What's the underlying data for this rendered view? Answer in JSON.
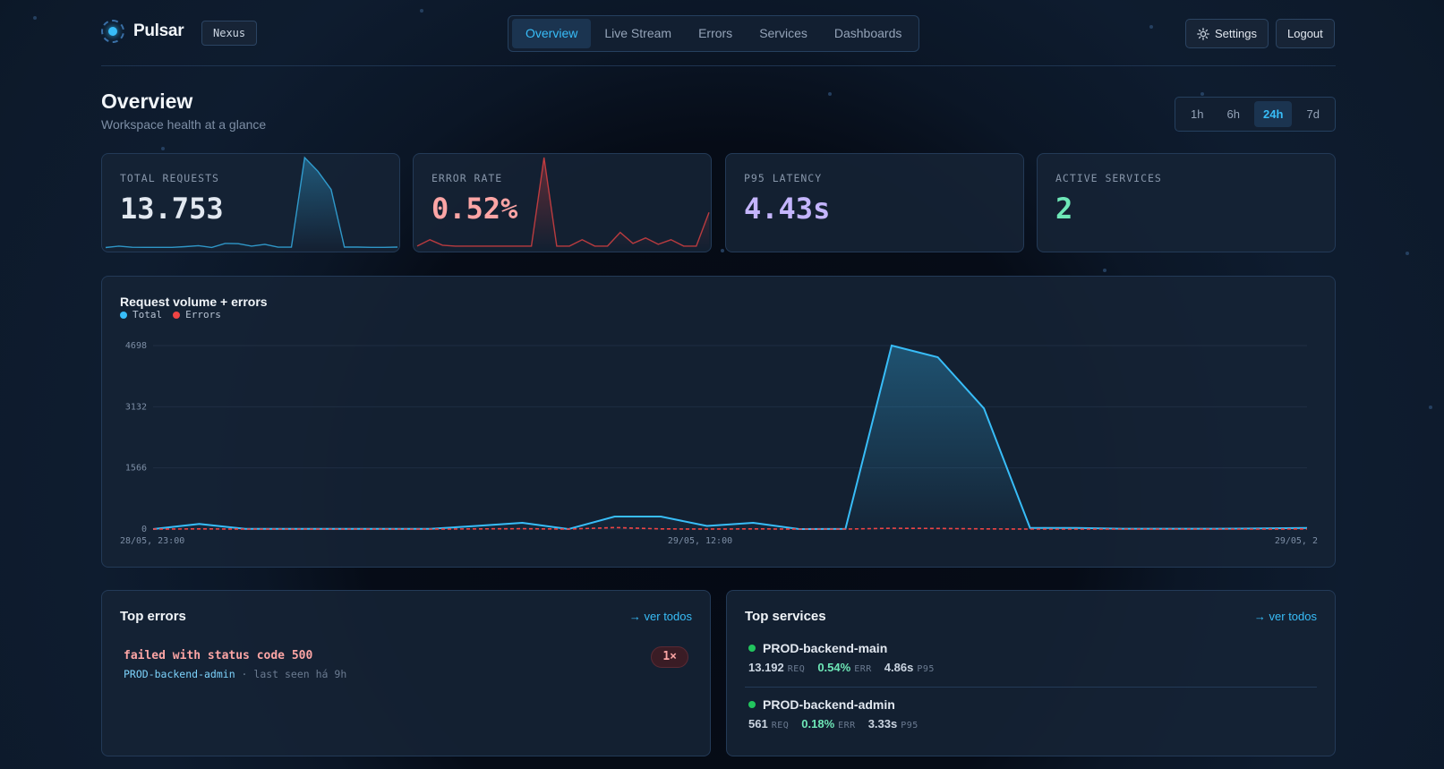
{
  "brand": {
    "name": "Pulsar",
    "workspace": "Nexus"
  },
  "nav": {
    "tabs": [
      {
        "label": "Overview",
        "active": true
      },
      {
        "label": "Live Stream",
        "active": false
      },
      {
        "label": "Errors",
        "active": false
      },
      {
        "label": "Services",
        "active": false
      },
      {
        "label": "Dashboards",
        "active": false
      }
    ],
    "settings_label": "Settings",
    "logout_label": "Logout"
  },
  "page": {
    "title": "Overview",
    "subtitle": "Workspace health at a glance"
  },
  "time_range": {
    "options": [
      "1h",
      "6h",
      "24h",
      "7d"
    ],
    "selected": "24h"
  },
  "kpis": [
    {
      "label": "TOTAL REQUESTS",
      "value": "13.753",
      "color": "#e2e8f0",
      "spark_color": "#38bdf8",
      "spark": [
        15,
        30,
        18,
        17,
        17,
        17,
        25,
        35,
        16,
        60,
        57,
        30,
        50,
        19,
        19,
        1000,
        850,
        650,
        20,
        20,
        17,
        17,
        20
      ]
    },
    {
      "label": "ERROR RATE",
      "value": "0.52%",
      "color": "#fca5a5",
      "spark_color": "#ef4444",
      "spark": [
        3,
        10,
        4,
        3,
        3,
        3,
        3,
        3,
        3,
        3,
        100,
        3,
        3,
        10,
        3,
        3,
        18,
        6,
        12,
        5,
        10,
        3,
        3,
        40
      ]
    },
    {
      "label": "P95 LATENCY",
      "value": "4.43s",
      "color": "#c4b5fd"
    },
    {
      "label": "ACTIVE SERVICES",
      "value": "2",
      "color": "#6ee7b7"
    }
  ],
  "chart_data": {
    "type": "area",
    "title": "Request volume + errors",
    "legend": [
      {
        "name": "Total",
        "color": "#38bdf8"
      },
      {
        "name": "Errors",
        "color": "#ef4444"
      }
    ],
    "y_ticks": [
      0,
      1566,
      3132,
      4698
    ],
    "ylim": [
      0,
      4698
    ],
    "x_tick_labels": [
      "28/05, 23:00",
      "29/05, 12:00",
      "29/05, 2"
    ],
    "series": [
      {
        "name": "Total",
        "color": "#38bdf8",
        "values": [
          0,
          130,
          5,
          5,
          5,
          5,
          5,
          80,
          160,
          0,
          320,
          320,
          80,
          160,
          0,
          5,
          4698,
          4400,
          3090,
          30,
          30,
          10,
          10,
          10,
          15,
          30
        ]
      },
      {
        "name": "Errors",
        "color": "#ef4444",
        "values": [
          0,
          5,
          0,
          0,
          0,
          0,
          0,
          5,
          10,
          0,
          40,
          5,
          0,
          5,
          0,
          0,
          20,
          15,
          5,
          0,
          0,
          0,
          0,
          0,
          0,
          5
        ]
      }
    ]
  },
  "top_errors": {
    "title": "Top errors",
    "see_all": "→ ver todos",
    "items": [
      {
        "message": "failed with status code 500",
        "service": "PROD-backend-admin",
        "meta": " · last seen há 9h",
        "count": "1×"
      }
    ]
  },
  "top_services": {
    "title": "Top services",
    "see_all": "→ ver todos",
    "items": [
      {
        "name": "PROD-backend-main",
        "req": "13.192",
        "err": "0.54%",
        "p95": "4.86s"
      },
      {
        "name": "PROD-backend-admin",
        "req": "561",
        "err": "0.18%",
        "p95": "3.33s"
      }
    ],
    "units": {
      "req": "REQ",
      "err": "ERR",
      "p95": "P95"
    }
  }
}
